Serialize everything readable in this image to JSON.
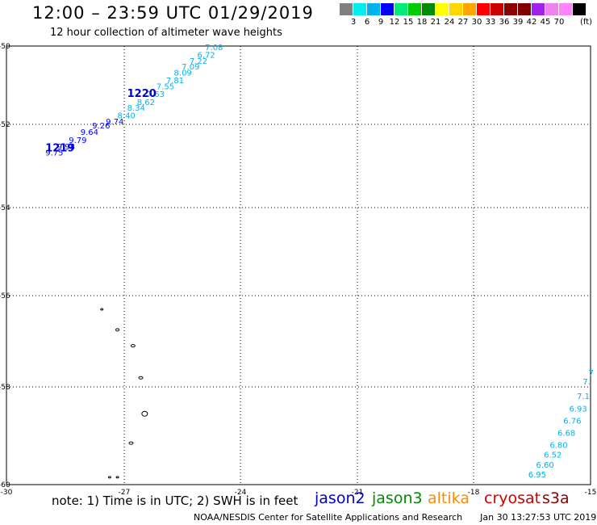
{
  "header": {
    "title": "12:00 – 23:59 UTC 01/29/2019",
    "subtitle": "12 hour collection of altimeter wave heights"
  },
  "legend": {
    "unit": "(ft)",
    "bins": [
      {
        "label": "",
        "color": "#808080"
      },
      {
        "label": "3",
        "color": "#00eeee"
      },
      {
        "label": "6",
        "color": "#00b2ee"
      },
      {
        "label": "9",
        "color": "#0000ff"
      },
      {
        "label": "12",
        "color": "#00ee76"
      },
      {
        "label": "15",
        "color": "#00cd00"
      },
      {
        "label": "18",
        "color": "#008b00"
      },
      {
        "label": "21",
        "color": "#ffff00"
      },
      {
        "label": "24",
        "color": "#ffd700"
      },
      {
        "label": "27",
        "color": "#ffa500"
      },
      {
        "label": "30",
        "color": "#ff0000"
      },
      {
        "label": "33",
        "color": "#cd0000"
      },
      {
        "label": "36",
        "color": "#8b0000"
      },
      {
        "label": "39",
        "color": "#800000"
      },
      {
        "label": "42",
        "color": "#a020f0"
      },
      {
        "label": "45",
        "color": "#ee82ee"
      },
      {
        "label": "70",
        "color": "#ff83fa"
      },
      {
        "label": "",
        "color": "#000000"
      }
    ]
  },
  "map": {
    "lat_range": [
      -60,
      -50
    ],
    "lon_range": [
      -30,
      -15
    ],
    "lat_ticks": [
      "-50",
      "-52",
      "-54",
      "-56",
      "-58",
      "-60"
    ],
    "lon_ticks": [
      "-30",
      "-27",
      "-24",
      "-21",
      "-18",
      "-15"
    ],
    "grid": true
  },
  "tracks": [
    {
      "time_label": "1220",
      "label_color": "#0000cd",
      "label_lon": -26.9,
      "label_lat": -51.3,
      "points": [
        {
          "value": "7.08",
          "lon": -24.9,
          "lat": -50.1,
          "color": "#00b2ee"
        },
        {
          "value": "6.72",
          "lon": -25.1,
          "lat": -50.3,
          "color": "#00b2ee"
        },
        {
          "value": "7.22",
          "lon": -25.3,
          "lat": -50.45,
          "color": "#00b2ee"
        },
        {
          "value": "7.09",
          "lon": -25.5,
          "lat": -50.6,
          "color": "#00b2ee"
        },
        {
          "value": "8.09",
          "lon": -25.7,
          "lat": -50.75,
          "color": "#00b2ee"
        },
        {
          "value": "7.81",
          "lon": -25.9,
          "lat": -50.95,
          "color": "#00b2ee"
        },
        {
          "value": "7.55",
          "lon": -26.15,
          "lat": -51.1,
          "color": "#00b2ee"
        },
        {
          "value": "7.63",
          "lon": -26.4,
          "lat": -51.3,
          "color": "#00b2ee"
        },
        {
          "value": "8.62",
          "lon": -26.65,
          "lat": -51.5,
          "color": "#00b2ee"
        },
        {
          "value": "8.34",
          "lon": -26.9,
          "lat": -51.65,
          "color": "#00b2ee"
        },
        {
          "value": "8.40",
          "lon": -27.15,
          "lat": -51.85,
          "color": "#00b2ee"
        },
        {
          "value": "9.74",
          "lon": -27.45,
          "lat": -52.0,
          "color": "#0000ff"
        }
      ]
    },
    {
      "time_label": "1219",
      "label_color": "#0000cd",
      "label_lon": -29.0,
      "label_lat": -52.65,
      "points": [
        {
          "value": "9.26",
          "lon": -27.8,
          "lat": -52.1,
          "color": "#0000ff"
        },
        {
          "value": "9.64",
          "lon": -28.1,
          "lat": -52.25,
          "color": "#0000ff"
        },
        {
          "value": "9.79",
          "lon": -28.4,
          "lat": -52.45,
          "color": "#0000ff"
        },
        {
          "value": "9.98",
          "lon": -28.7,
          "lat": -52.6,
          "color": "#0000ff"
        },
        {
          "value": "9.75",
          "lon": -29.0,
          "lat": -52.75,
          "color": "#0000ff"
        }
      ]
    },
    {
      "time_label": "",
      "label_color": "#00b2ee",
      "label_lon": -15.0,
      "label_lat": -58.0,
      "points": [
        {
          "value": "7",
          "lon": -15.05,
          "lat": -57.75,
          "color": "#00b2ee"
        },
        {
          "value": "7.",
          "lon": -15.2,
          "lat": -57.95,
          "color": "#00b2ee"
        },
        {
          "value": "7.1",
          "lon": -15.35,
          "lat": -58.25,
          "color": "#00b2ee"
        },
        {
          "value": "6.93",
          "lon": -15.55,
          "lat": -58.5,
          "color": "#00b2ee"
        },
        {
          "value": "6.76",
          "lon": -15.7,
          "lat": -58.75,
          "color": "#00b2ee"
        },
        {
          "value": "6.68",
          "lon": -15.85,
          "lat": -59.0,
          "color": "#00b2ee"
        },
        {
          "value": "6.80",
          "lon": -16.05,
          "lat": -59.25,
          "color": "#00b2ee"
        },
        {
          "value": "6.52",
          "lon": -16.2,
          "lat": -59.45,
          "color": "#00b2ee"
        },
        {
          "value": "6.60",
          "lon": -16.4,
          "lat": -59.65,
          "color": "#00b2ee"
        },
        {
          "value": "6.95",
          "lon": -16.6,
          "lat": -59.85,
          "color": "#00b2ee"
        }
      ]
    }
  ],
  "islands": [
    {
      "lon": -27.55,
      "lat": -56.3,
      "w": 3,
      "h": 2
    },
    {
      "lon": -27.15,
      "lat": -56.75,
      "w": 4,
      "h": 3
    },
    {
      "lon": -26.75,
      "lat": -57.1,
      "w": 5,
      "h": 3
    },
    {
      "lon": -26.55,
      "lat": -57.8,
      "w": 5,
      "h": 3
    },
    {
      "lon": -26.45,
      "lat": -58.55,
      "w": 7,
      "h": 6
    },
    {
      "lon": -26.8,
      "lat": -59.15,
      "w": 5,
      "h": 3
    },
    {
      "lon": -27.35,
      "lat": -59.85,
      "w": 3,
      "h": 2
    },
    {
      "lon": -27.15,
      "lat": -59.85,
      "w": 3,
      "h": 2
    }
  ],
  "footer": {
    "note": "note: 1) Time is in UTC; 2) SWH is in feet",
    "satellites": [
      {
        "name": "jason2",
        "color": "#0000cd"
      },
      {
        "name": "jason3",
        "color": "#008b00"
      },
      {
        "name": "altika",
        "color": "#ff8c00"
      },
      {
        "name": "cryosat",
        "color": "#cd0000"
      },
      {
        "name": "s3a",
        "color": "#8b0000"
      }
    ],
    "credit": "NOAA/NESDIS Center for Satellite Applications and Research",
    "stamp": "Jan 30 13:27:53 UTC 2019"
  }
}
